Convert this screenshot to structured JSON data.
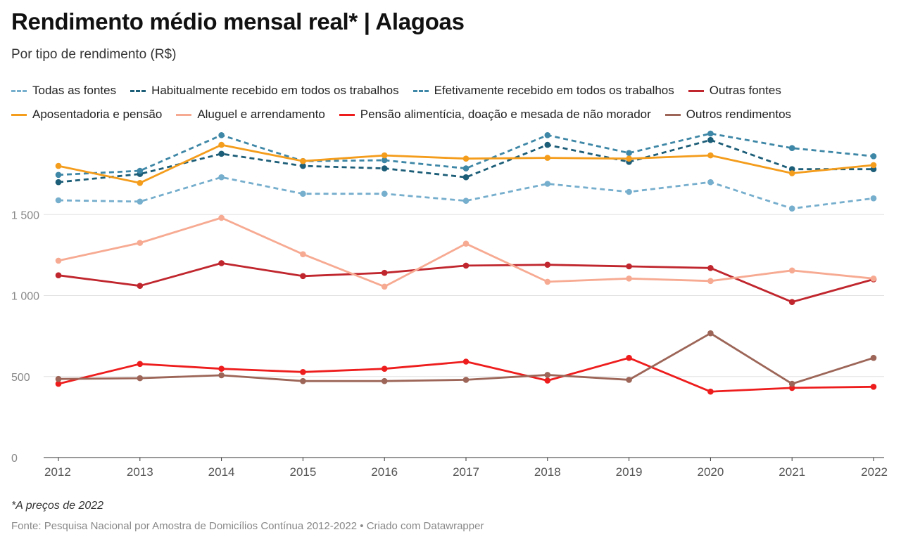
{
  "title": "Rendimento médio mensal real* | Alagoas",
  "subtitle": "Por tipo de rendimento (R$)",
  "note": "*A preços de 2022",
  "footer": "Fonte: Pesquisa Nacional por Amostra de Domicílios Contínua 2012-2022 • Criado com Datawrapper",
  "chart_data": {
    "type": "line",
    "x": [
      "2012",
      "2013",
      "2014",
      "2015",
      "2016",
      "2017",
      "2018",
      "2019",
      "2020",
      "2021",
      "2022"
    ],
    "ylim": [
      0,
      2000
    ],
    "yticks": [
      0,
      500,
      1000,
      1500
    ],
    "ytick_labels": [
      "0",
      "500",
      "1 000",
      "1 500"
    ],
    "grid": true,
    "legend_position": "top",
    "series": [
      {
        "name": "Todas as fontes",
        "color": "#76aecd",
        "dash": true,
        "values": [
          1588,
          1580,
          1730,
          1628,
          1628,
          1585,
          1690,
          1640,
          1700,
          1537,
          1600
        ]
      },
      {
        "name": "Habitualmente recebido em todos os trabalhos",
        "color": "#1c5d77",
        "dash": true,
        "values": [
          1700,
          1750,
          1875,
          1800,
          1785,
          1730,
          1930,
          1825,
          1960,
          1780,
          1780
        ]
      },
      {
        "name": "Efetivamente recebido em todos os trabalhos",
        "color": "#3e87a6",
        "dash": true,
        "values": [
          1745,
          1770,
          1990,
          1830,
          1835,
          1785,
          1990,
          1880,
          2000,
          1910,
          1860
        ]
      },
      {
        "name": "Outras fontes",
        "color": "#c0262d",
        "dash": false,
        "values": [
          1125,
          1060,
          1200,
          1120,
          1140,
          1185,
          1190,
          1180,
          1170,
          960,
          1100
        ]
      },
      {
        "name": "Aposentadoria e pensão",
        "color": "#f49c1b",
        "dash": false,
        "values": [
          1800,
          1695,
          1930,
          1830,
          1865,
          1845,
          1850,
          1845,
          1865,
          1755,
          1805
        ]
      },
      {
        "name": "Aluguel e arrendamento",
        "color": "#f7aa92",
        "dash": false,
        "values": [
          1215,
          1325,
          1480,
          1255,
          1055,
          1320,
          1085,
          1105,
          1090,
          1155,
          1105
        ]
      },
      {
        "name": "Pensão alimentícia, doação e mesada de não morador",
        "color": "#ee1d1d",
        "dash": false,
        "values": [
          455,
          578,
          548,
          528,
          548,
          592,
          475,
          615,
          407,
          430,
          437
        ]
      },
      {
        "name": "Outros rendimentos",
        "color": "#9c6557",
        "dash": false,
        "values": [
          485,
          490,
          508,
          472,
          472,
          480,
          510,
          480,
          767,
          455,
          615
        ]
      }
    ]
  }
}
